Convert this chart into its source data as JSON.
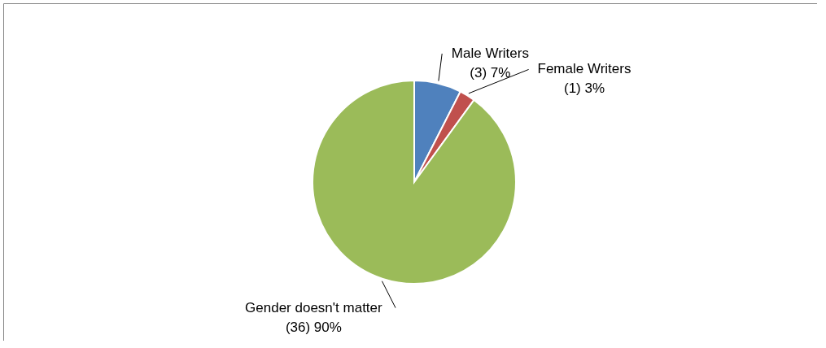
{
  "chart_data": {
    "type": "pie",
    "categories": [
      "Male Writers",
      "Female Writers",
      "Gender doesn't matter"
    ],
    "values": [
      3,
      1,
      36
    ],
    "value_labels": [
      "(3)   7%",
      "(1)  3%",
      "(36)  90%"
    ],
    "colors": [
      "#4f81bd",
      "#c0504d",
      "#9bbb59"
    ]
  }
}
